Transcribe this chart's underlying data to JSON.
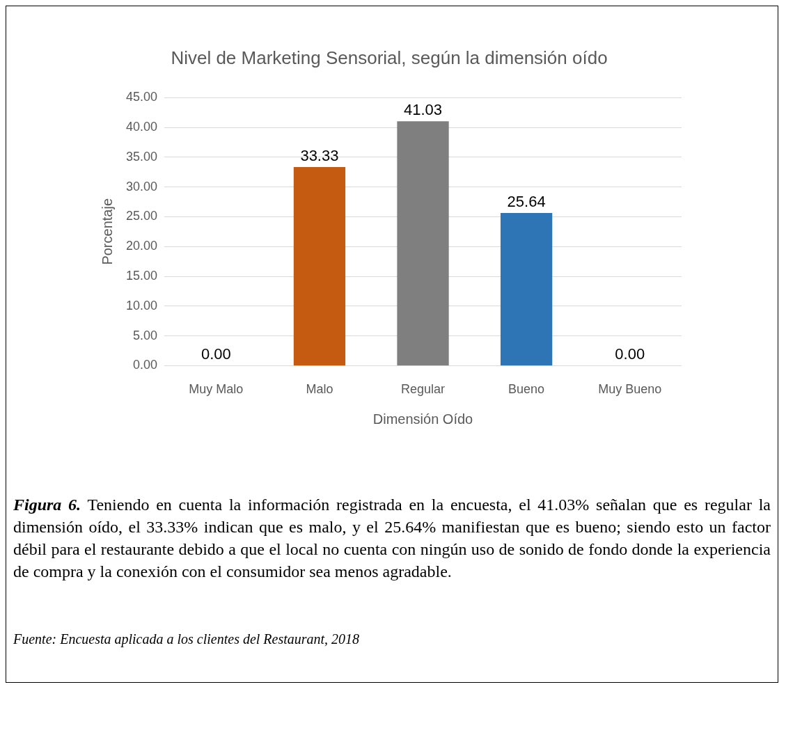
{
  "chart_data": {
    "type": "bar",
    "title": "Nivel de Marketing Sensorial, según la dimensión oído",
    "xlabel": "Dimensión Oído",
    "ylabel": "Porcentaje",
    "categories": [
      "Muy Malo",
      "Malo",
      "Regular",
      "Bueno",
      "Muy Bueno"
    ],
    "values": [
      0,
      33.33,
      41.03,
      25.64,
      0
    ],
    "colors": [
      "#222a35",
      "#c55a11",
      "#7f7f7f",
      "#2e75b6",
      "#548235"
    ],
    "ylim": [
      0,
      45
    ],
    "yticks": [
      {
        "value": 0,
        "label": "0.00"
      },
      {
        "value": 5,
        "label": "5.00"
      },
      {
        "value": 10,
        "label": "10.00"
      },
      {
        "value": 15,
        "label": "15.00"
      },
      {
        "value": 20,
        "label": "20.00"
      },
      {
        "value": 25,
        "label": "25.00"
      },
      {
        "value": 30,
        "label": "30.00"
      },
      {
        "value": 35,
        "label": "35.00"
      },
      {
        "value": 40,
        "label": "40.00"
      },
      {
        "value": 45,
        "label": "45.00"
      }
    ],
    "grid": "y",
    "legend": false,
    "value_labels": [
      "0.00",
      "33.33",
      "41.03",
      "25.64",
      "0.00"
    ],
    "annotations": [
      "Figura 6.",
      "Teniendo en cuenta la información registrada en la encuesta, el 41.03% señalan que es regular la dimensión oído, el 33.33% indican que es malo, y el 25.64% manifiestan que es bueno; siendo esto un factor débil para el restaurante debido a que el local no cuenta con ningún uso de sonido de fondo donde la experiencia de compra y la conexión con el consumidor sea menos agradable.",
      "Fuente: Encuesta aplicada a los clientes del Restaurant, 2018"
    ]
  }
}
